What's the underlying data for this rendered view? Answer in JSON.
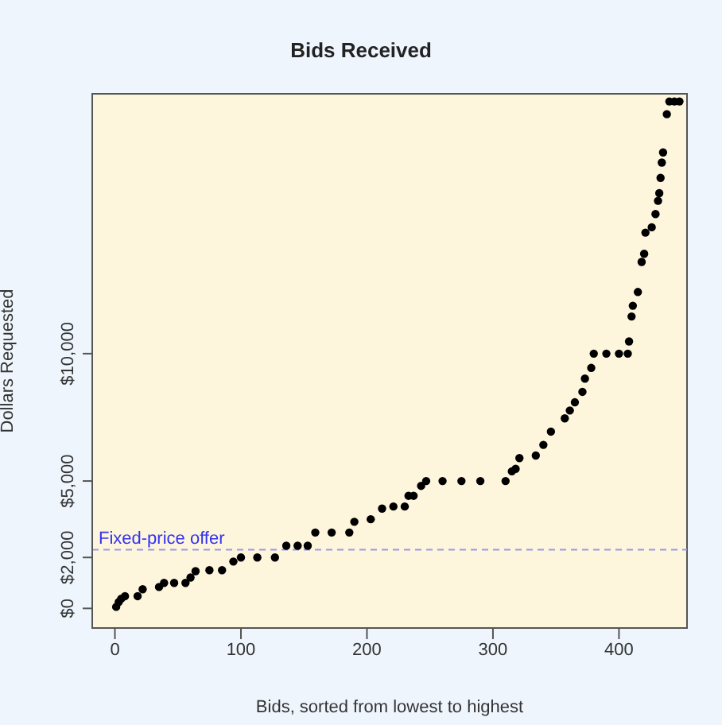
{
  "chart_data": {
    "type": "scatter",
    "title": "Bids Received",
    "xlabel": "Bids, sorted from lowest to highest",
    "ylabel": "Dollars Requested",
    "x": [
      1,
      3,
      5,
      8,
      18,
      22,
      35,
      39,
      47,
      56,
      60,
      64,
      75,
      85,
      94,
      100,
      113,
      127,
      136,
      145,
      153,
      159,
      172,
      186,
      190,
      203,
      212,
      221,
      230,
      233,
      237,
      243,
      247,
      260,
      275,
      290,
      310,
      315,
      318,
      321,
      334,
      340,
      346,
      357,
      361,
      365,
      371,
      373,
      378,
      380,
      390,
      400,
      407,
      408,
      410,
      411,
      415,
      418,
      420,
      421,
      426,
      429,
      431,
      432,
      433,
      434,
      435,
      438,
      440,
      444,
      448
    ],
    "series": [
      {
        "color": "#000000",
        "values": [
          60,
          250,
          380,
          480,
          480,
          750,
          840,
          1000,
          1000,
          1000,
          1210,
          1460,
          1500,
          1500,
          1840,
          2000,
          2000,
          2000,
          2460,
          2460,
          2460,
          2980,
          2980,
          2980,
          3400,
          3500,
          3920,
          4000,
          4000,
          4420,
          4420,
          4810,
          5000,
          5000,
          5000,
          5000,
          5000,
          5380,
          5480,
          5900,
          6000,
          6420,
          6940,
          7460,
          7770,
          8090,
          8500,
          9020,
          9440,
          10000,
          10000,
          10000,
          10000,
          10480,
          11460,
          11880,
          12420,
          13600,
          13920,
          14750,
          14960,
          15480,
          16000,
          16300,
          16900,
          17500,
          17900,
          19400,
          19900,
          19900,
          19900
        ]
      }
    ],
    "xlim": [
      -18,
      454
    ],
    "xticks": [
      0,
      100,
      200,
      300,
      400
    ],
    "ylim": [
      -770,
      20200
    ],
    "yticks": [
      {
        "value": 0,
        "label": "$0"
      },
      {
        "value": 2000,
        "label": "$2,000"
      },
      {
        "value": 5000,
        "label": "$5,000"
      },
      {
        "value": 10000,
        "label": "$10,000"
      }
    ],
    "ref_lines": [
      {
        "axis": "y",
        "value": 2300,
        "label": "Fixed-price offer",
        "color": "#9a9ae6",
        "line_style": "dashed"
      }
    ],
    "marker": "circle",
    "legend": false
  }
}
